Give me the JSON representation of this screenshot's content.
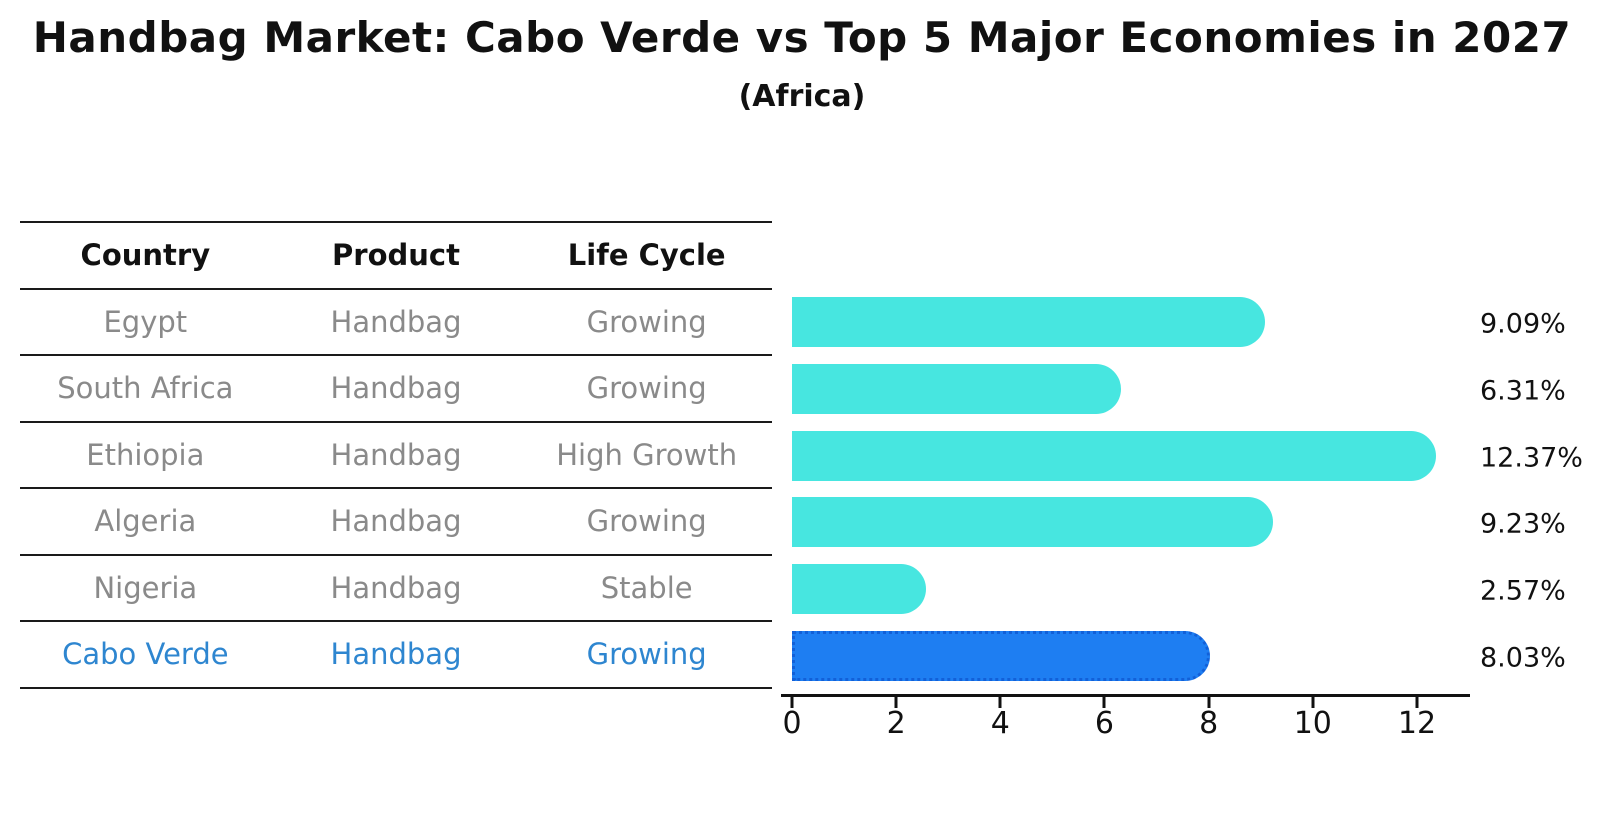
{
  "title": "Handbag Market: Cabo Verde vs Top 5 Major Economies in 2027",
  "subtitle": "(Africa)",
  "table": {
    "headers": [
      "Country",
      "Product",
      "Life Cycle"
    ],
    "rows": [
      {
        "country": "Egypt",
        "product": "Handbag",
        "life_cycle": "Growing",
        "highlight": false
      },
      {
        "country": "South Africa",
        "product": "Handbag",
        "life_cycle": "Growing",
        "highlight": false
      },
      {
        "country": "Ethiopia",
        "product": "Handbag",
        "life_cycle": "High Growth",
        "highlight": false
      },
      {
        "country": "Algeria",
        "product": "Handbag",
        "life_cycle": "Growing",
        "highlight": false
      },
      {
        "country": "Nigeria",
        "product": "Handbag",
        "life_cycle": "Stable",
        "highlight": false
      },
      {
        "country": "Cabo Verde",
        "product": "Handbag",
        "life_cycle": "Growing",
        "highlight": true
      }
    ]
  },
  "chart_data": {
    "type": "bar",
    "orientation": "horizontal",
    "title": "Handbag Market: Cabo Verde vs Top 5 Major Economies in 2027 (Africa)",
    "categories": [
      "Egypt",
      "South Africa",
      "Ethiopia",
      "Algeria",
      "Nigeria",
      "Cabo Verde"
    ],
    "values": [
      9.09,
      6.31,
      12.37,
      9.23,
      2.57,
      8.03
    ],
    "value_labels": [
      "9.09%",
      "6.31%",
      "12.37%",
      "9.23%",
      "2.57%",
      "8.03%"
    ],
    "x_ticks": [
      "0",
      "2",
      "4",
      "6",
      "8",
      "10",
      "12"
    ],
    "x_tick_values": [
      0,
      2,
      4,
      6,
      8,
      10,
      12
    ],
    "xlim": [
      0,
      13
    ],
    "grid": false,
    "legend": false,
    "highlight_index": 5
  },
  "colors": {
    "bar_default": "#47e6e0",
    "bar_highlight_fill": "#1e7ef2",
    "bar_highlight_border": "#1260d8",
    "highlight_text": "#2e86d0",
    "table_text": "#8a8a8a",
    "heading_text": "#111111"
  }
}
